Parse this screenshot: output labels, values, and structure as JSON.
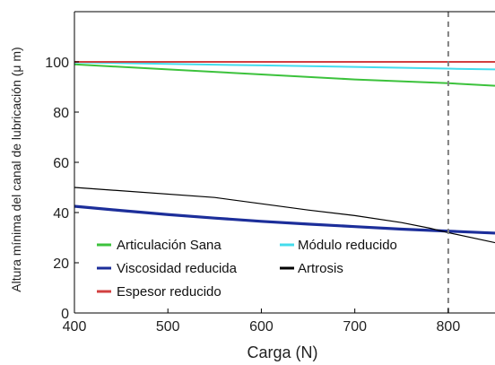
{
  "chart_data": {
    "type": "line",
    "xlabel": "Carga (N)",
    "ylabel": "Altura mínima del canal de lubricación (μ m)",
    "xlim": [
      400,
      850
    ],
    "ylim": [
      0,
      120
    ],
    "xticks": [
      400,
      500,
      600,
      700,
      800
    ],
    "yticks": [
      0,
      20,
      40,
      60,
      80,
      100
    ],
    "grid": false,
    "legend_position": "lower-left",
    "reference_line": {
      "x": 800,
      "style": "dashed",
      "color": "#808080"
    },
    "series": [
      {
        "name": "Articulación Sana",
        "color": "#3cc23c",
        "x": [
          400,
          500,
          600,
          700,
          800,
          850
        ],
        "y": [
          99,
          97,
          95,
          93,
          91.5,
          90.5
        ]
      },
      {
        "name": "Módulo reducido",
        "color": "#44dcec",
        "x": [
          400,
          500,
          600,
          700,
          800,
          850
        ],
        "y": [
          99.8,
          99.2,
          98.6,
          98,
          97.3,
          97
        ]
      },
      {
        "name": "Viscosidad reducida",
        "color": "#1c2e9a",
        "x": [
          400,
          450,
          500,
          550,
          600,
          650,
          700,
          750,
          800,
          850
        ],
        "y": [
          42.5,
          40.8,
          39.2,
          37.8,
          36.5,
          35.4,
          34.4,
          33.4,
          32.6,
          31.8
        ]
      },
      {
        "name": "Artrosis",
        "color": "#000000",
        "x": [
          400,
          550,
          600,
          650,
          700,
          750,
          780,
          800,
          850
        ],
        "y": [
          50,
          46,
          43.5,
          41,
          38.8,
          36,
          33.8,
          32,
          28
        ]
      },
      {
        "name": "Espesor reducido",
        "color": "#d24040",
        "x": [
          400,
          850
        ],
        "y": [
          100,
          100
        ]
      }
    ]
  }
}
